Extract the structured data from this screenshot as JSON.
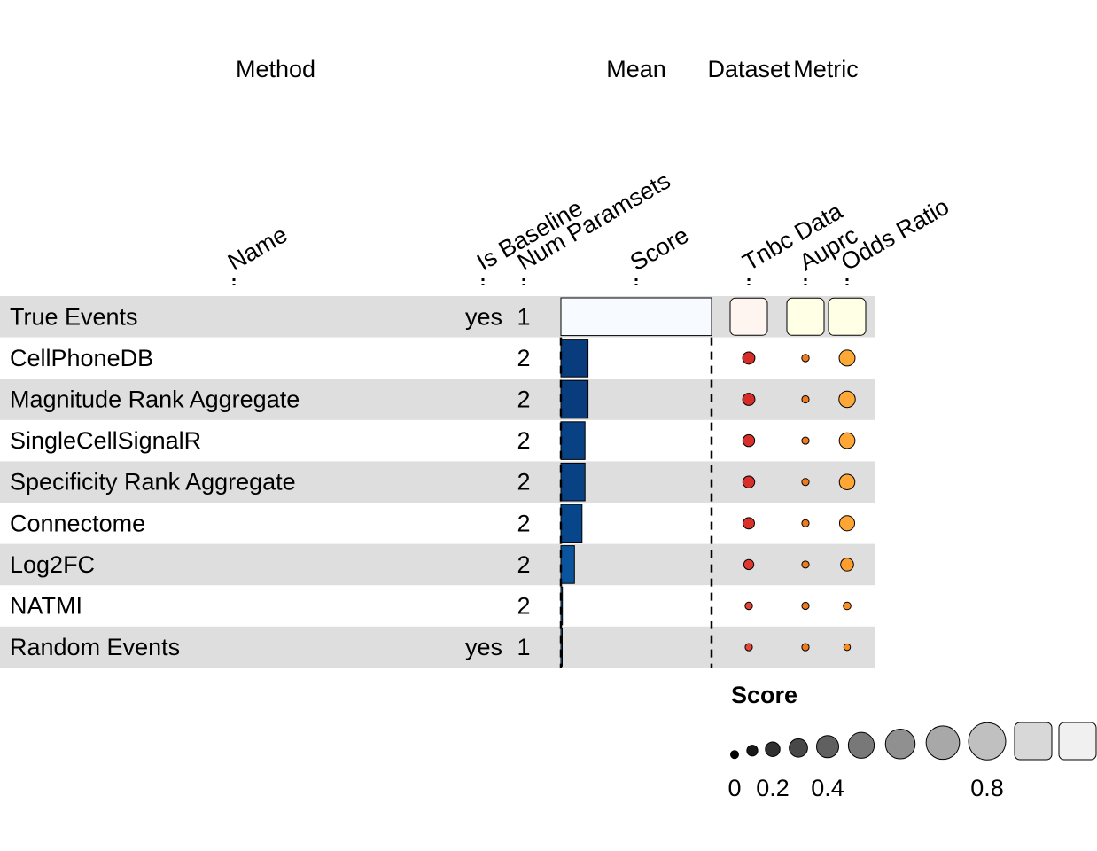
{
  "chart_data": {
    "type": "table",
    "column_groups": [
      {
        "label": "Method",
        "columns": [
          "Name",
          "Is Baseline",
          "Num Paramsets"
        ]
      },
      {
        "label": "Mean",
        "columns": [
          "Score"
        ]
      },
      {
        "label": "Dataset",
        "columns": [
          "Tnbc Data"
        ]
      },
      {
        "label": "Metric",
        "columns": [
          "Auprc",
          "Odds Ratio"
        ]
      }
    ],
    "rows": [
      {
        "name": "True Events",
        "is_baseline": "yes",
        "num_paramsets": "1",
        "score": 1.0,
        "tnbc_data": 1.0,
        "auprc": 1.0,
        "odds_ratio": 1.0
      },
      {
        "name": "CellPhoneDB",
        "is_baseline": "",
        "num_paramsets": "2",
        "score": 0.18,
        "tnbc_data": 0.45,
        "auprc": 0.21,
        "odds_ratio": 0.63
      },
      {
        "name": "Magnitude Rank Aggregate",
        "is_baseline": "",
        "num_paramsets": "2",
        "score": 0.18,
        "tnbc_data": 0.45,
        "auprc": 0.2,
        "odds_ratio": 0.65
      },
      {
        "name": "SingleCellSignalR",
        "is_baseline": "",
        "num_paramsets": "2",
        "score": 0.16,
        "tnbc_data": 0.43,
        "auprc": 0.2,
        "odds_ratio": 0.62
      },
      {
        "name": "Specificity Rank Aggregate",
        "is_baseline": "",
        "num_paramsets": "2",
        "score": 0.16,
        "tnbc_data": 0.43,
        "auprc": 0.2,
        "odds_ratio": 0.61
      },
      {
        "name": "Connectome",
        "is_baseline": "",
        "num_paramsets": "2",
        "score": 0.14,
        "tnbc_data": 0.41,
        "auprc": 0.2,
        "odds_ratio": 0.59
      },
      {
        "name": "Log2FC",
        "is_baseline": "",
        "num_paramsets": "2",
        "score": 0.09,
        "tnbc_data": 0.34,
        "auprc": 0.2,
        "odds_ratio": 0.48
      },
      {
        "name": "NATMI",
        "is_baseline": "",
        "num_paramsets": "2",
        "score": 0.01,
        "tnbc_data": 0.21,
        "auprc": 0.2,
        "odds_ratio": 0.22
      },
      {
        "name": "Random Events",
        "is_baseline": "yes",
        "num_paramsets": "1",
        "score": 0.005,
        "tnbc_data": 0.2,
        "auprc": 0.2,
        "odds_ratio": 0.17
      }
    ],
    "score_axis": {
      "min": 0,
      "max": 1
    },
    "legend": {
      "title": "Score",
      "sizes": [
        0,
        0.1,
        0.2,
        0.3,
        0.4,
        0.5,
        0.6,
        0.7,
        0.8,
        0.9,
        1.0
      ],
      "tick_labels": [
        {
          "label": "0",
          "value": 0
        },
        {
          "label": "0.2",
          "value": 0.2
        },
        {
          "label": "0.4",
          "value": 0.4
        },
        {
          "label": "0.8",
          "value": 0.8
        }
      ],
      "placement": "bottom-right"
    },
    "colors": {
      "row_stripe": "#dedede",
      "bar_palette": [
        "#f7fbff",
        "#08306b"
      ],
      "dataset_palette": [
        "#fff5f0",
        "#67000d"
      ],
      "metric_palette": [
        "#ffffe5",
        "#662506"
      ],
      "legend_palette": [
        "#000000",
        "#f0f0f0"
      ]
    }
  }
}
